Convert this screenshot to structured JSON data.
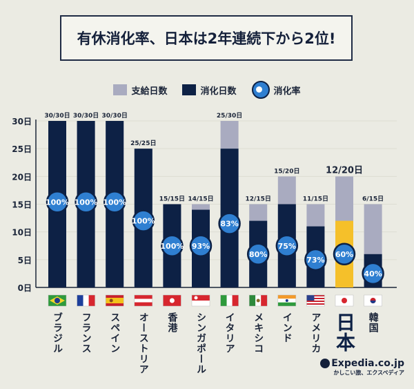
{
  "title": "有休消化率、日本は2年連続下から2位!",
  "legend": [
    {
      "label": "支給日数",
      "color": "#a9abc0"
    },
    {
      "label": "消化日数",
      "color": "#0d2145"
    },
    {
      "label": "消化率",
      "color": "#2f7fd1"
    }
  ],
  "logo": {
    "name": "Expedia.co.jp",
    "tagline": "かしこい旅、エクスペディア"
  },
  "chart_data": {
    "type": "bar",
    "title": "有休消化率、日本は2年連続下から2位!",
    "yticks": [
      "0日",
      "5日",
      "10日",
      "15日",
      "20日",
      "25日",
      "30日"
    ],
    "ylim": [
      0,
      30
    ],
    "grid": true,
    "legend_position": "top",
    "categories": [
      "ブラジル",
      "フランス",
      "スペイン",
      "オーストリア",
      "香港",
      "シンガポール",
      "イタリア",
      "メキシコ",
      "インド",
      "アメリカ",
      "日本",
      "韓国"
    ],
    "flags": [
      "brazil-flag",
      "france-flag",
      "spain-flag",
      "austria-flag",
      "hongkong-flag",
      "singapore-flag",
      "italy-flag",
      "mexico-flag",
      "india-flag",
      "usa-flag",
      "japan-flag",
      "korea-flag"
    ],
    "series": [
      {
        "name": "支給日数",
        "values": [
          30,
          30,
          30,
          25,
          15,
          15,
          30,
          15,
          20,
          15,
          20,
          15
        ]
      },
      {
        "name": "消化日数",
        "values": [
          30,
          30,
          30,
          25,
          15,
          14,
          25,
          12,
          15,
          11,
          12,
          6
        ]
      },
      {
        "name": "消化率",
        "values": [
          100,
          100,
          100,
          100,
          100,
          93,
          83,
          80,
          75,
          73,
          60,
          40
        ]
      }
    ],
    "data_labels": [
      "30/30日",
      "30/30日",
      "30/30日",
      "25/25日",
      "15/15日",
      "14/15日",
      "25/30日",
      "12/15日",
      "15/20日",
      "11/15日",
      "12/20日",
      "6/15日"
    ],
    "rate_labels": [
      "100%",
      "100%",
      "100%",
      "100%",
      "100%",
      "93%",
      "83%",
      "80%",
      "75%",
      "73%",
      "60%",
      "40%"
    ],
    "highlight": {
      "category": "日本",
      "color": "#f5c02a"
    },
    "colors": {
      "granted": "#a9abc0",
      "used": "#0d2145",
      "rate": "#2f7fd1"
    }
  }
}
